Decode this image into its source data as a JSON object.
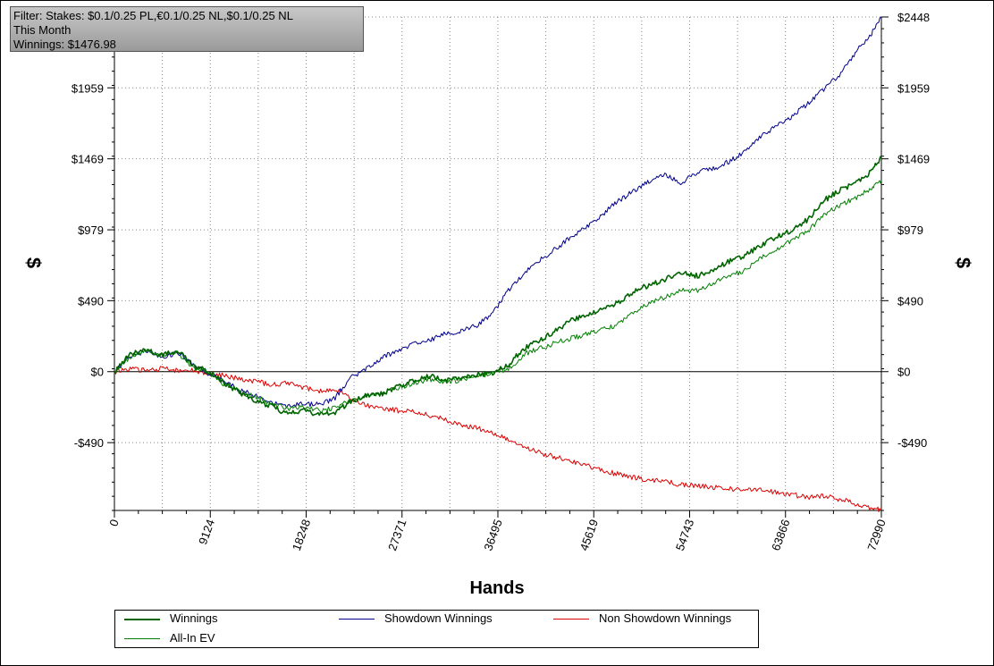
{
  "filter": {
    "line1": "Filter: Stakes: $0.1/0.25 PL,€0.1/0.25 NL,$0.1/0.25 NL",
    "line2": "This Month",
    "line3": "Winnings: $1476.98"
  },
  "chart_data": {
    "type": "line",
    "xlabel": "Hands",
    "ylabel": "$",
    "xlim": [
      0,
      72990
    ],
    "ylim": [
      -958,
      2448
    ],
    "x_ticks": [
      0,
      9124,
      18248,
      27371,
      36495,
      45619,
      54743,
      63866,
      72990
    ],
    "y_ticks": [
      {
        "value": 2448,
        "label": "$2448"
      },
      {
        "value": 1959,
        "label": "$1959"
      },
      {
        "value": 1469,
        "label": "$1469"
      },
      {
        "value": 979,
        "label": "$979"
      },
      {
        "value": 490,
        "label": "$490"
      },
      {
        "value": 0,
        "label": "$0"
      },
      {
        "value": -490,
        "label": "-$490"
      }
    ],
    "grid": true,
    "legend_position": "bottom",
    "series": [
      {
        "name": "Winnings",
        "color": "#006400",
        "x": [
          0,
          1500,
          3000,
          4500,
          6000,
          7500,
          9000,
          10500,
          12000,
          13500,
          15000,
          16500,
          18000,
          19500,
          21000,
          22500,
          24000,
          25500,
          27000,
          28500,
          30000,
          31500,
          33000,
          34500,
          36000,
          37500,
          39000,
          40500,
          42000,
          43500,
          45000,
          46500,
          48000,
          49500,
          51000,
          52500,
          54000,
          55500,
          57000,
          58500,
          60000,
          61500,
          63000,
          64500,
          66000,
          67500,
          69000,
          70500,
          72000,
          72990
        ],
        "y": [
          0,
          120,
          150,
          110,
          150,
          40,
          0,
          -80,
          -150,
          -200,
          -240,
          -290,
          -270,
          -300,
          -280,
          -210,
          -160,
          -150,
          -100,
          -60,
          -30,
          -60,
          -50,
          -20,
          -10,
          50,
          160,
          220,
          280,
          360,
          390,
          430,
          480,
          560,
          600,
          640,
          680,
          660,
          700,
          760,
          800,
          870,
          930,
          980,
          1050,
          1180,
          1250,
          1300,
          1380,
          1477
        ]
      },
      {
        "name": "All-In EV",
        "color": "#008000",
        "x": [
          0,
          1500,
          3000,
          4500,
          6000,
          7500,
          9000,
          10500,
          12000,
          13500,
          15000,
          16500,
          18000,
          19500,
          21000,
          22500,
          24000,
          25500,
          27000,
          28500,
          30000,
          31500,
          33000,
          34500,
          36000,
          37500,
          39000,
          40500,
          42000,
          43500,
          45000,
          46500,
          48000,
          49500,
          51000,
          52500,
          54000,
          55500,
          57000,
          58500,
          60000,
          61500,
          63000,
          64500,
          66000,
          67500,
          69000,
          70500,
          72000,
          72990
        ],
        "y": [
          0,
          100,
          140,
          120,
          130,
          30,
          -10,
          -90,
          -140,
          -180,
          -220,
          -260,
          -240,
          -270,
          -250,
          -200,
          -170,
          -150,
          -110,
          -80,
          -50,
          -70,
          -60,
          -30,
          -10,
          20,
          120,
          160,
          200,
          230,
          260,
          290,
          330,
          420,
          470,
          520,
          560,
          560,
          610,
          660,
          700,
          780,
          850,
          900,
          970,
          1080,
          1150,
          1200,
          1260,
          1320
        ]
      },
      {
        "name": "Showdown Winnings",
        "color": "#00008b",
        "x": [
          0,
          1500,
          3000,
          4500,
          6000,
          7500,
          9000,
          10500,
          12000,
          13500,
          15000,
          16500,
          18000,
          19500,
          21000,
          22500,
          24000,
          25500,
          27000,
          28500,
          30000,
          31500,
          33000,
          34500,
          36000,
          37500,
          39000,
          40500,
          42000,
          43500,
          45000,
          46500,
          48000,
          49500,
          51000,
          52500,
          54000,
          55500,
          57000,
          58500,
          60000,
          61500,
          63000,
          64500,
          66000,
          67500,
          69000,
          70500,
          72000,
          72990
        ],
        "y": [
          0,
          110,
          140,
          100,
          130,
          50,
          -20,
          -60,
          -130,
          -170,
          -220,
          -240,
          -220,
          -230,
          -180,
          -40,
          20,
          100,
          140,
          200,
          220,
          260,
          280,
          320,
          400,
          560,
          680,
          770,
          850,
          930,
          1000,
          1090,
          1180,
          1250,
          1320,
          1360,
          1300,
          1380,
          1400,
          1450,
          1520,
          1620,
          1700,
          1760,
          1850,
          1950,
          2050,
          2200,
          2330,
          2448
        ]
      },
      {
        "name": "Non Showdown Winnings",
        "color": "#dd0000",
        "x": [
          0,
          1500,
          3000,
          4500,
          6000,
          7500,
          9000,
          10500,
          12000,
          13500,
          15000,
          16500,
          18000,
          19500,
          21000,
          22500,
          24000,
          25500,
          27000,
          28500,
          30000,
          31500,
          33000,
          34500,
          36000,
          37500,
          39000,
          40500,
          42000,
          43500,
          45000,
          46500,
          48000,
          49500,
          51000,
          52500,
          54000,
          55500,
          57000,
          58500,
          60000,
          61500,
          63000,
          64500,
          66000,
          67500,
          69000,
          70500,
          72000,
          72990
        ],
        "y": [
          0,
          20,
          10,
          20,
          10,
          10,
          -10,
          -30,
          -50,
          -70,
          -90,
          -80,
          -110,
          -130,
          -120,
          -190,
          -230,
          -250,
          -270,
          -270,
          -300,
          -330,
          -370,
          -390,
          -420,
          -470,
          -520,
          -560,
          -590,
          -620,
          -650,
          -680,
          -710,
          -730,
          -750,
          -760,
          -780,
          -790,
          -800,
          -810,
          -810,
          -820,
          -830,
          -850,
          -870,
          -860,
          -880,
          -910,
          -940,
          -958
        ]
      }
    ]
  }
}
